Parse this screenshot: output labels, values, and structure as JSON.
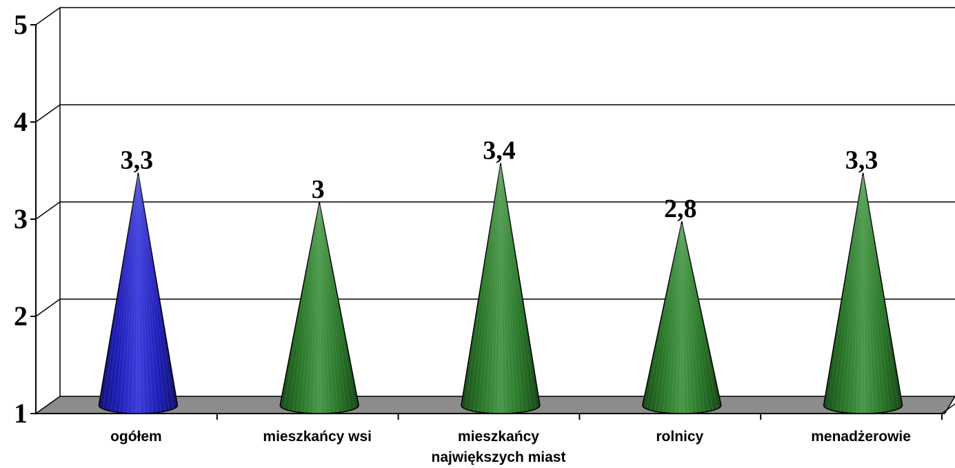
{
  "chart_data": {
    "type": "bar",
    "bar_shape": "cone",
    "categories": [
      [
        "ogółem"
      ],
      [
        "mieszkańcy wsi"
      ],
      [
        "mieszkańcy",
        "największych miast"
      ],
      [
        "rolnicy"
      ],
      [
        "menadżerowie"
      ]
    ],
    "values": [
      3.3,
      3,
      3.4,
      2.8,
      3.3
    ],
    "data_labels": [
      "3,3",
      "3",
      "3,4",
      "2,8",
      "3,3"
    ],
    "ylim": [
      1,
      5
    ],
    "yticks": [
      "1",
      "2",
      "3",
      "4",
      "5"
    ],
    "grid": true,
    "colors": [
      "#2323d8",
      "#2f8a2f",
      "#2f8a2f",
      "#2f8a2f",
      "#2f8a2f"
    ],
    "floor_color": "#8c8c8c",
    "title": "",
    "xlabel": "",
    "ylabel": ""
  }
}
